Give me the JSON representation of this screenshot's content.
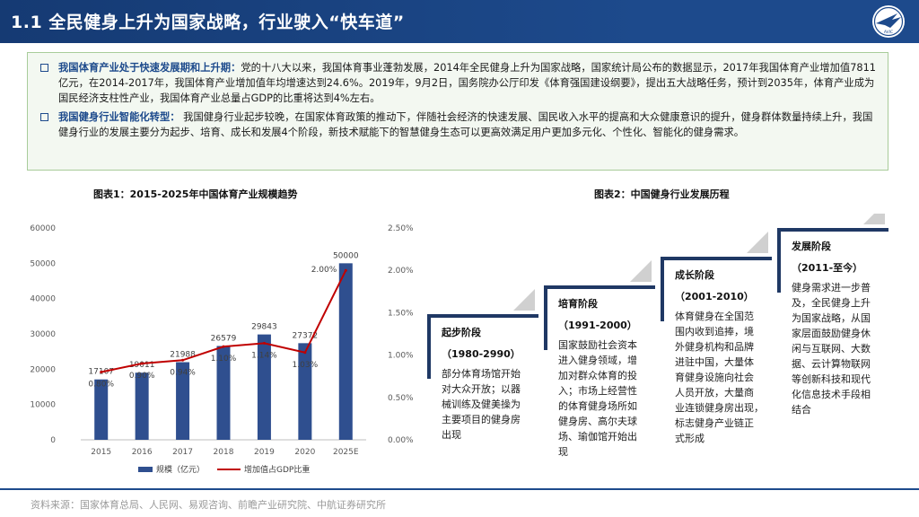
{
  "header": {
    "title": "1.1 全民健身上升为国家战略，行业驶入“快车道”",
    "logo_text": "AVIC"
  },
  "summary": {
    "items": [
      {
        "lead": "我国体育产业处于快速发展期和上升期：",
        "text": "党的十八大以来，我国体育事业蓬勃发展，2014年全民健身上升为国家战略，国家统计局公布的数据显示，2017年我国体育产业增加值7811亿元，在2014-2017年，我国体育产业增加值年均增速达到24.6%。2019年，9月2日，国务院办公厅印发《体育强国建设纲要》，提出五大战略任务，预计到2035年，体育产业成为国民经济支柱性产业，我国体育产业总量占GDP的比重将达到4%左右。"
      },
      {
        "lead": "我国健身行业智能化转型：",
        "text": " 我国健身行业起步较晚，在国家体育政策的推动下，伴随社会经济的快速发展、国民收入水平的提高和大众健康意识的提升，健身群体数量持续上升，我国健身行业的发展主要分为起步、培育、成长和发展4个阶段，新技术赋能下的智慧健身生态可以更高效满足用户更加多元化、个性化、智能化的健身需求。"
      }
    ]
  },
  "chart_data": [
    {
      "type": "bar",
      "title": "图表1：2015-2025年中国体育产业规模趋势",
      "categories": [
        "2015",
        "2016",
        "2017",
        "2018",
        "2019",
        "2020",
        "2025E"
      ],
      "series": [
        {
          "name": "规模（亿元）",
          "type": "bar",
          "axis": "left",
          "color": "#2f4f8f",
          "values": [
            17107,
            19011,
            21988,
            26579,
            29843,
            27372,
            50000
          ],
          "labels": [
            "17107",
            "19011",
            "21988",
            "26579",
            "29843",
            "27372",
            "50000"
          ]
        },
        {
          "name": "增加值占GDP比重",
          "type": "line",
          "axis": "right",
          "color": "#c00000",
          "values": [
            0.8,
            0.9,
            0.94,
            1.1,
            1.14,
            1.03,
            2.0
          ],
          "labels": [
            "0.80%",
            "0.90%",
            "0.94%",
            "1.10%",
            "1.14%",
            "1.03%",
            "2.00%"
          ]
        }
      ],
      "y_left": {
        "min": 0,
        "max": 60000,
        "ticks": [
          "0",
          "10000",
          "20000",
          "30000",
          "40000",
          "50000",
          "60000"
        ]
      },
      "y_right": {
        "min": 0,
        "max": 2.5,
        "ticks": [
          "0.00%",
          "0.50%",
          "1.00%",
          "1.50%",
          "2.00%",
          "2.50%"
        ]
      },
      "grid": false,
      "legend": "bottom"
    },
    {
      "type": "timeline",
      "title": "图表2：中国健身行业发展历程",
      "stages": [
        {
          "name": "起步阶段",
          "period": "（1980-2990）",
          "lines": [
            "部分体育场馆开始",
            "对大众开放；以器",
            "械训练及健美操为",
            "主要项目的健身房",
            "出现"
          ]
        },
        {
          "name": "培育阶段",
          "period": "（1991-2000）",
          "lines": [
            "国家鼓励社会资本",
            "进入健身领域，增",
            "加对群众体育的投",
            "入；市场上经营性",
            "的体育健身场所如",
            "健身房、高尔夫球",
            "场、瑜伽馆开始出",
            "现"
          ]
        },
        {
          "name": "成长阶段",
          "period": "（2001-2010）",
          "lines": [
            "体育健身在全国范",
            "围内收到追捧，境",
            "外健身机构和品牌",
            "进驻中国，大量体",
            "育健身设施向社会",
            "人员开放，大量商",
            "业连锁健身房出现，",
            "标志健身产业链正",
            "式形成"
          ]
        },
        {
          "name": "发展阶段",
          "period": "（2011-至今）",
          "lines": [
            "健身需求进一步普",
            "及，全民健身上升",
            "为国家战略，从国",
            "家层面鼓励健身休",
            "闲与互联网、大数",
            "据、云计算物联网",
            "等创新科技和现代",
            "化信息技术手段相",
            "结合"
          ]
        }
      ]
    }
  ],
  "footer": {
    "source": "资料来源：国家体育总局、人民网、易观咨询、前瞻产业研究院、中航证券研究所"
  },
  "colors": {
    "brand": "#1d4a8c",
    "bar": "#2f4f8f",
    "line": "#c00000",
    "summary_border": "#a8cc9a"
  }
}
